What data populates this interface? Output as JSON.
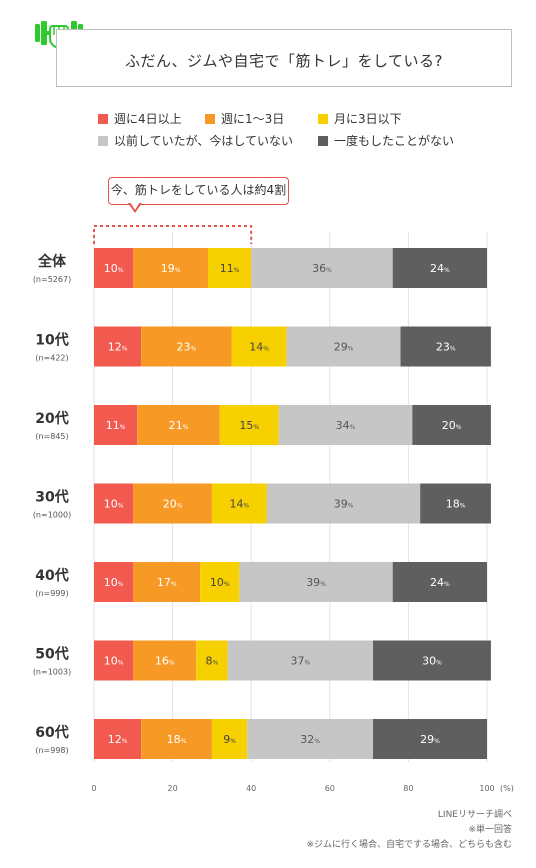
{
  "title": "ふだん、ジムや自宅で「筋トレ」をしている?",
  "logo": {
    "icon": "dumbbell-hand-icon",
    "color": "#2fc92f"
  },
  "legend": [
    {
      "label": "週に4日以上",
      "color": "#f25a50"
    },
    {
      "label": "週に1〜3日",
      "color": "#f79a25"
    },
    {
      "label": "月に3日以下",
      "color": "#f7d000"
    },
    {
      "label": "以前していたが、今はしていない",
      "color": "#c6c6c6"
    },
    {
      "label": "一度もしたことがない",
      "color": "#5f5f5f"
    }
  ],
  "callout": "今、筋トレをしている人は約4割",
  "chart_data": {
    "type": "bar",
    "orientation": "horizontal",
    "stacked": true,
    "categories": [
      "全体",
      "10代",
      "20代",
      "30代",
      "40代",
      "50代",
      "60代"
    ],
    "category_n": [
      "(n=5267)",
      "(n=422)",
      "(n=845)",
      "(n=1000)",
      "(n=999)",
      "(n=1003)",
      "(n=998)"
    ],
    "series": [
      {
        "name": "週に4日以上",
        "color": "#f25a50",
        "values": [
          10,
          12,
          11,
          10,
          10,
          10,
          12
        ]
      },
      {
        "name": "週に1〜3日",
        "color": "#f79a25",
        "values": [
          19,
          23,
          21,
          20,
          17,
          16,
          18
        ]
      },
      {
        "name": "月に3日以下",
        "color": "#f7d000",
        "values": [
          11,
          14,
          15,
          14,
          10,
          8,
          9
        ]
      },
      {
        "name": "以前していたが、今はしていない",
        "color": "#c6c6c6",
        "values": [
          36,
          29,
          34,
          39,
          39,
          37,
          32
        ]
      },
      {
        "name": "一度もしたことがない",
        "color": "#5f5f5f",
        "values": [
          24,
          23,
          20,
          18,
          24,
          30,
          29
        ]
      }
    ],
    "xlim": [
      0,
      100
    ],
    "xticks": [
      0,
      20,
      40,
      60,
      80,
      100
    ],
    "xunit": "(%)",
    "value_suffix": "%",
    "grid": true
  },
  "footnotes": [
    "LINEリサーチ調べ",
    "※単一回答",
    "※ジムに行く場合、自宅でする場合、どちらも含む"
  ]
}
